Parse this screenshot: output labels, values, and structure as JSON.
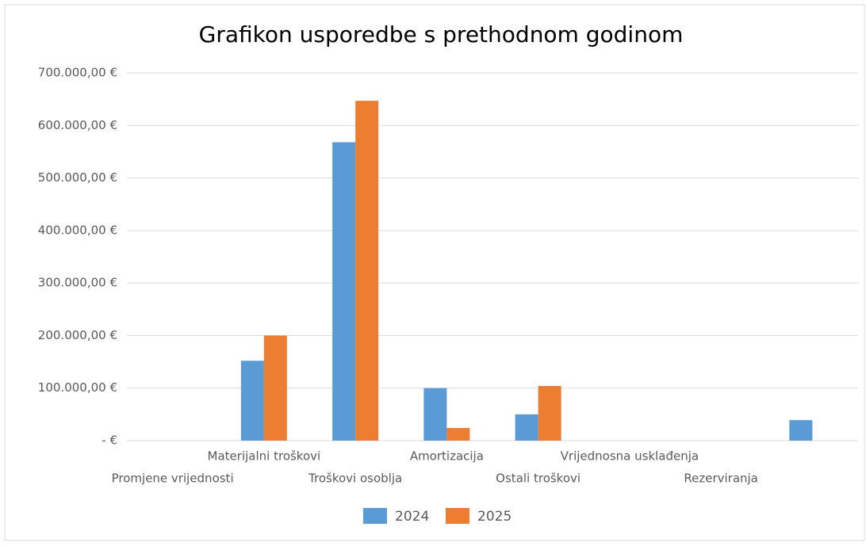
{
  "chart_data": {
    "type": "bar",
    "title": "Grafikon usporedbe s prethodnom godinom",
    "categories": [
      "Promjene vrijednosti",
      "Materijalni troškovi",
      "Troškovi osoblja",
      "Amortizacija",
      "Ostali troškovi",
      "Vrijednosna usklađenja",
      "Rezerviranja",
      null
    ],
    "series": [
      {
        "name": "2024",
        "color": "#5b9bd5",
        "values": [
          0,
          152000,
          568000,
          100000,
          50000,
          0,
          0,
          39000
        ]
      },
      {
        "name": "2025",
        "color": "#ed7d31",
        "values": [
          0,
          200000,
          647000,
          24000,
          104000,
          0,
          0,
          0
        ]
      }
    ],
    "ylim": [
      0,
      700000
    ],
    "yticks": [
      {
        "value": 0,
        "label": "-   €"
      },
      {
        "value": 100000,
        "label": "100.000,00 €"
      },
      {
        "value": 200000,
        "label": "200.000,00 €"
      },
      {
        "value": 300000,
        "label": "300.000,00 €"
      },
      {
        "value": 400000,
        "label": "400.000,00 €"
      },
      {
        "value": 500000,
        "label": "500.000,00 €"
      },
      {
        "value": 600000,
        "label": "600.000,00 €"
      },
      {
        "value": 700000,
        "label": "700.000,00 €"
      }
    ],
    "grid": true,
    "legend": "bottom"
  }
}
